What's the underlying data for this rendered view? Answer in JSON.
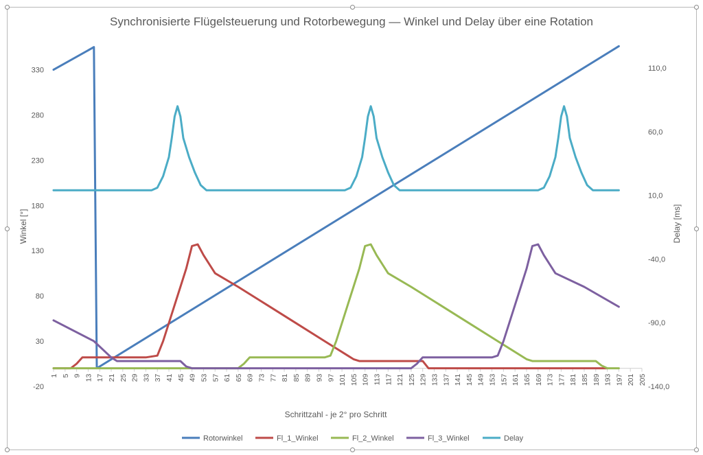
{
  "chart_data": {
    "type": "line",
    "title": "Synchronisierte Flügelsteuerung und Rotorbewegung — Winkel und Delay über eine Rotation",
    "xlabel": "Schrittzahl - je 2° pro Schritt",
    "ylabel_left": "Winkel [°]",
    "ylabel_right": "Delay [ms]",
    "x_ticks": [
      "1",
      "5",
      "9",
      "13",
      "17",
      "21",
      "25",
      "29",
      "33",
      "37",
      "41",
      "45",
      "49",
      "53",
      "57",
      "61",
      "65",
      "69",
      "73",
      "77",
      "81",
      "85",
      "89",
      "93",
      "97",
      "101",
      "105",
      "109",
      "113",
      "117",
      "121",
      "125",
      "129",
      "133",
      "137",
      "141",
      "145",
      "149",
      "153",
      "157",
      "161",
      "165",
      "169",
      "173",
      "177",
      "181",
      "185",
      "189",
      "193",
      "197",
      "201",
      "205"
    ],
    "xlim": [
      1,
      205
    ],
    "ylim_left": [
      -20,
      360
    ],
    "yticks_left": [
      "-20",
      "30",
      "80",
      "130",
      "180",
      "230",
      "280",
      "330"
    ],
    "ylim_right": [
      -140,
      130
    ],
    "yticks_right": [
      "-140,0",
      "-90,0",
      "-40,0",
      "10,0",
      "60,0",
      "110,0"
    ],
    "legend_position": "bottom",
    "series": [
      {
        "name": "Rotorwinkel",
        "color": "#4a7ebb",
        "axis": "left",
        "points": [
          [
            1,
            330
          ],
          [
            15,
            355
          ],
          [
            16,
            0
          ],
          [
            197,
            356
          ]
        ]
      },
      {
        "name": "Fl_1_Winkel",
        "color": "#be4b48",
        "axis": "left",
        "points": [
          [
            1,
            0
          ],
          [
            7,
            0
          ],
          [
            9,
            5
          ],
          [
            11,
            12
          ],
          [
            33,
            12
          ],
          [
            37,
            14
          ],
          [
            39,
            30
          ],
          [
            41,
            50
          ],
          [
            43,
            70
          ],
          [
            45,
            90
          ],
          [
            47,
            110
          ],
          [
            49,
            135
          ],
          [
            51,
            137
          ],
          [
            53,
            125
          ],
          [
            55,
            115
          ],
          [
            57,
            105
          ],
          [
            65,
            90
          ],
          [
            75,
            70
          ],
          [
            85,
            50
          ],
          [
            95,
            30
          ],
          [
            105,
            10
          ],
          [
            107,
            8
          ],
          [
            129,
            8
          ],
          [
            131,
            0
          ],
          [
            193,
            0
          ]
        ]
      },
      {
        "name": "Fl_2_Winkel",
        "color": "#98b954",
        "axis": "left",
        "points": [
          [
            1,
            0
          ],
          [
            65,
            0
          ],
          [
            67,
            5
          ],
          [
            69,
            12
          ],
          [
            95,
            12
          ],
          [
            97,
            14
          ],
          [
            99,
            30
          ],
          [
            101,
            50
          ],
          [
            103,
            70
          ],
          [
            105,
            90
          ],
          [
            107,
            110
          ],
          [
            109,
            135
          ],
          [
            111,
            137
          ],
          [
            113,
            125
          ],
          [
            115,
            115
          ],
          [
            117,
            105
          ],
          [
            125,
            90
          ],
          [
            135,
            70
          ],
          [
            145,
            50
          ],
          [
            155,
            30
          ],
          [
            165,
            10
          ],
          [
            167,
            8
          ],
          [
            189,
            8
          ],
          [
            191,
            3
          ],
          [
            193,
            0
          ],
          [
            197,
            0
          ]
        ]
      },
      {
        "name": "Fl_3_Winkel",
        "color": "#7d60a0",
        "axis": "left",
        "points": [
          [
            1,
            53
          ],
          [
            15,
            30
          ],
          [
            21,
            12
          ],
          [
            23,
            8
          ],
          [
            45,
            8
          ],
          [
            47,
            2
          ],
          [
            49,
            0
          ],
          [
            125,
            0
          ],
          [
            127,
            5
          ],
          [
            129,
            12
          ],
          [
            153,
            12
          ],
          [
            155,
            14
          ],
          [
            157,
            30
          ],
          [
            159,
            50
          ],
          [
            161,
            70
          ],
          [
            163,
            90
          ],
          [
            165,
            110
          ],
          [
            167,
            135
          ],
          [
            169,
            137
          ],
          [
            171,
            125
          ],
          [
            173,
            115
          ],
          [
            175,
            105
          ],
          [
            185,
            90
          ],
          [
            197,
            68
          ]
        ]
      },
      {
        "name": "Delay",
        "color": "#4bacc6",
        "axis": "right",
        "points": [
          [
            1,
            14
          ],
          [
            35,
            14
          ],
          [
            37,
            16
          ],
          [
            39,
            25
          ],
          [
            41,
            40
          ],
          [
            42,
            55
          ],
          [
            43,
            72
          ],
          [
            44,
            80
          ],
          [
            45,
            72
          ],
          [
            46,
            55
          ],
          [
            48,
            40
          ],
          [
            50,
            28
          ],
          [
            52,
            18
          ],
          [
            54,
            14
          ],
          [
            102,
            14
          ],
          [
            104,
            16
          ],
          [
            106,
            25
          ],
          [
            108,
            40
          ],
          [
            109,
            55
          ],
          [
            110,
            72
          ],
          [
            111,
            80
          ],
          [
            112,
            72
          ],
          [
            113,
            55
          ],
          [
            115,
            40
          ],
          [
            117,
            28
          ],
          [
            119,
            18
          ],
          [
            121,
            14
          ],
          [
            169,
            14
          ],
          [
            171,
            16
          ],
          [
            173,
            25
          ],
          [
            175,
            40
          ],
          [
            176,
            55
          ],
          [
            177,
            72
          ],
          [
            178,
            80
          ],
          [
            179,
            72
          ],
          [
            180,
            55
          ],
          [
            182,
            40
          ],
          [
            184,
            28
          ],
          [
            186,
            18
          ],
          [
            188,
            14
          ],
          [
            197,
            14
          ]
        ]
      }
    ]
  }
}
